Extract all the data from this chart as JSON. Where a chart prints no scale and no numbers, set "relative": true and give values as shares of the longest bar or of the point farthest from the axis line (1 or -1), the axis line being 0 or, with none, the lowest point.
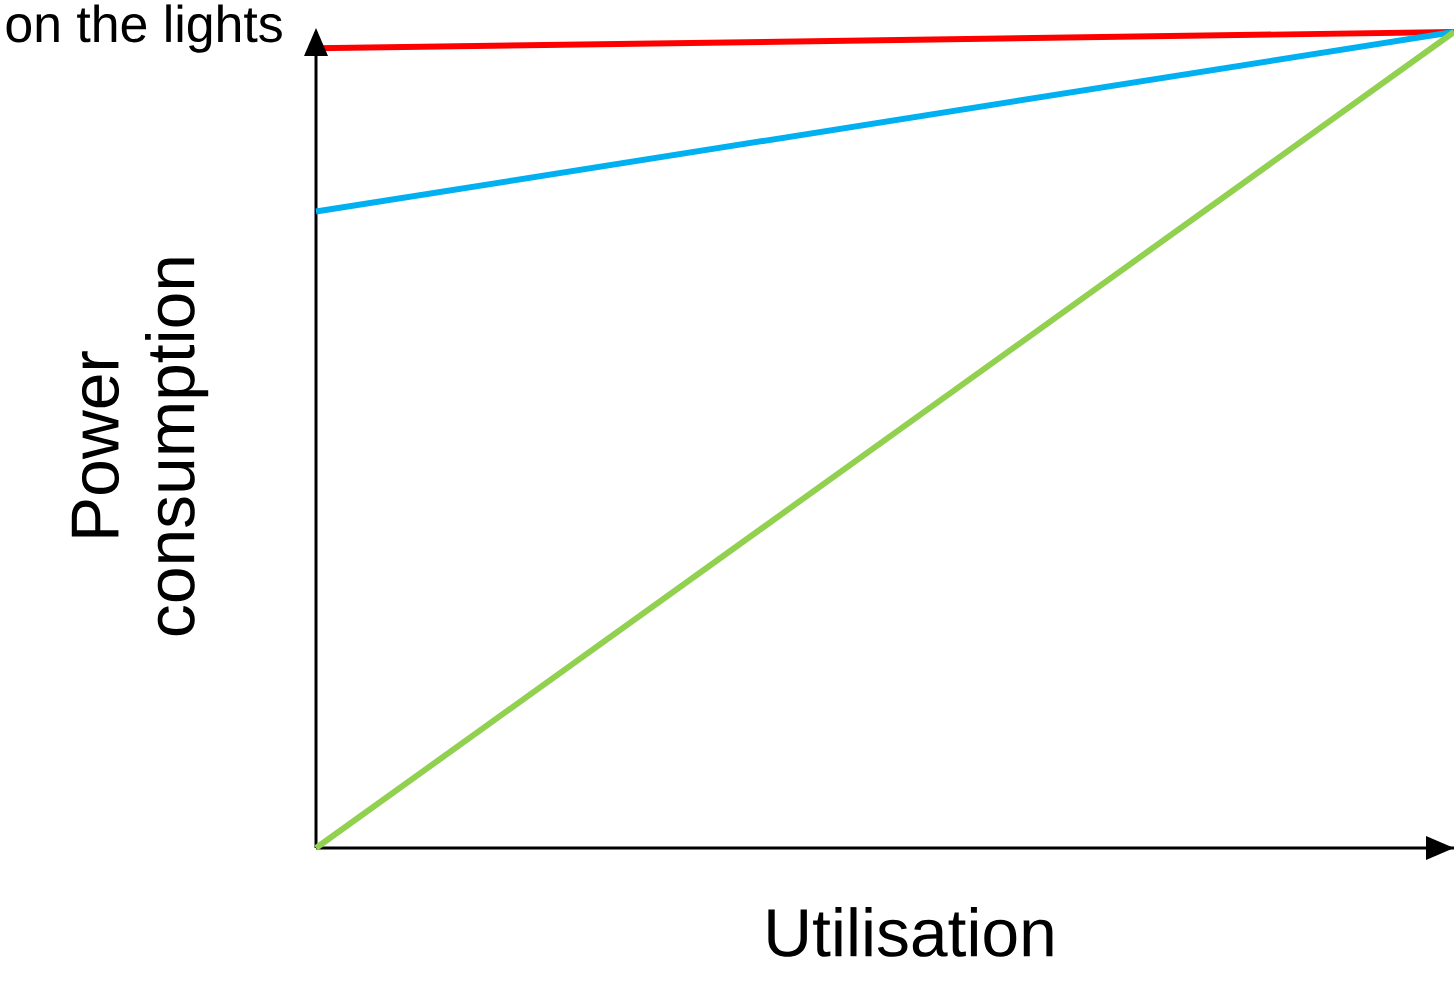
{
  "chart_data": {
    "type": "line",
    "relative": true,
    "xlabel": "Utilisation",
    "ylabel": "Power consumption",
    "annotations": [
      "on the lights"
    ],
    "categories": [
      null,
      null
    ],
    "line_style": "solid",
    "series": [
      {
        "color": "#ff0000",
        "values": [
          0.98,
          1
        ]
      },
      {
        "color": "#00b0f0",
        "values": [
          0.78,
          1
        ]
      },
      {
        "color": "#92d050",
        "values": [
          0,
          1
        ]
      }
    ]
  }
}
